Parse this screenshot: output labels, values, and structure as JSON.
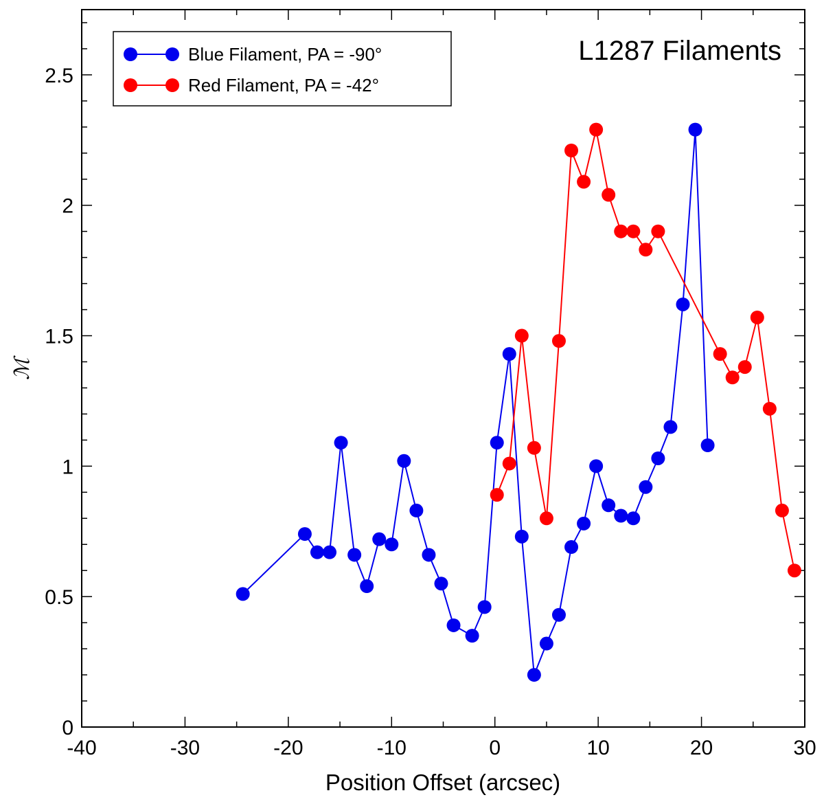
{
  "chart_data": {
    "type": "line",
    "title": "L1287 Filaments",
    "xlabel": "Position Offset (arcsec)",
    "ylabel": "ℳ",
    "xlim": [
      -40,
      30
    ],
    "ylim": [
      0,
      2.75
    ],
    "xticks": [
      -40,
      -30,
      -20,
      -10,
      0,
      10,
      20,
      30
    ],
    "xtick_labels": [
      "-40",
      "-30",
      "-20",
      "-10",
      "0",
      "10",
      "20",
      "30"
    ],
    "xminor_step": 5,
    "yticks": [
      0,
      0.5,
      1,
      1.5,
      2,
      2.5
    ],
    "ytick_labels": [
      "0",
      "0.5",
      "1",
      "1.5",
      "2",
      "2.5"
    ],
    "yminor_step": 0.1,
    "grid": false,
    "legend_position": "top-left",
    "series": [
      {
        "name": "Blue Filament, PA = -90°",
        "color": "#0000ee",
        "x": [
          -24.4,
          -18.4,
          -17.2,
          -16.0,
          -14.9,
          -13.6,
          -12.4,
          -11.2,
          -10.0,
          -8.8,
          -7.6,
          -6.4,
          -5.2,
          -4.0,
          -2.2,
          -1.0,
          0.2,
          1.4,
          2.6,
          3.8,
          5.0,
          6.2,
          7.4,
          8.6,
          9.8,
          11.0,
          12.2,
          13.4,
          14.6,
          15.8,
          17.0,
          18.2,
          19.4,
          20.6
        ],
        "y": [
          0.51,
          0.74,
          0.67,
          0.67,
          1.09,
          0.66,
          0.54,
          0.72,
          0.7,
          1.02,
          0.83,
          0.66,
          0.55,
          0.39,
          0.35,
          0.46,
          1.09,
          1.43,
          0.73,
          0.2,
          0.32,
          0.43,
          0.69,
          0.78,
          1.0,
          0.85,
          0.81,
          0.8,
          0.92,
          1.03,
          1.15,
          1.62,
          2.29,
          1.08
        ]
      },
      {
        "name": "Red Filament, PA = -42°",
        "color": "#ff0000",
        "x": [
          0.2,
          1.4,
          2.6,
          3.8,
          5.0,
          6.2,
          7.4,
          8.6,
          9.8,
          11.0,
          12.2,
          13.4,
          14.6,
          15.8,
          21.8,
          23.0,
          24.2,
          25.4,
          26.6,
          27.8,
          29.0
        ],
        "y": [
          0.89,
          1.01,
          1.5,
          1.07,
          0.8,
          1.48,
          2.21,
          2.09,
          2.29,
          2.04,
          1.9,
          1.9,
          1.83,
          1.9,
          1.43,
          1.34,
          1.38,
          1.57,
          1.22,
          0.83,
          0.6
        ]
      }
    ]
  }
}
